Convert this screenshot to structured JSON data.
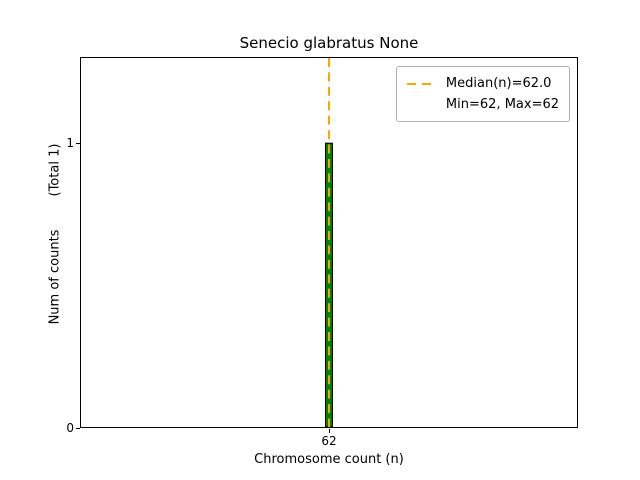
{
  "chart_data": {
    "type": "bar",
    "title": "Senecio glabratus None",
    "xlabel": "Chromosome count (n)",
    "ylabel": "Num of counts        (Total 1)",
    "categories": [
      62
    ],
    "values": [
      1
    ],
    "bar_color": "#008000",
    "bar_edge_color": "#000000",
    "bar_width": 0.014,
    "median_line": {
      "value": 62.0,
      "color": "#ffa500",
      "style": "dashed"
    },
    "legend": {
      "position": "upper-right",
      "entries": [
        {
          "label": "Median(n)=62.0",
          "marker": "dashed-line",
          "color": "#ffa500"
        },
        {
          "label": "Min=62, Max=62",
          "marker": "none"
        }
      ]
    },
    "xlim": [
      61.5,
      62.5
    ],
    "ylim": [
      0,
      1.3
    ],
    "x_ticks": [
      {
        "value": 62,
        "label": "62"
      }
    ],
    "y_ticks": [
      {
        "value": 0,
        "label": "0"
      },
      {
        "value": 1,
        "label": "1"
      }
    ],
    "grid": false,
    "background": "#ffffff"
  }
}
